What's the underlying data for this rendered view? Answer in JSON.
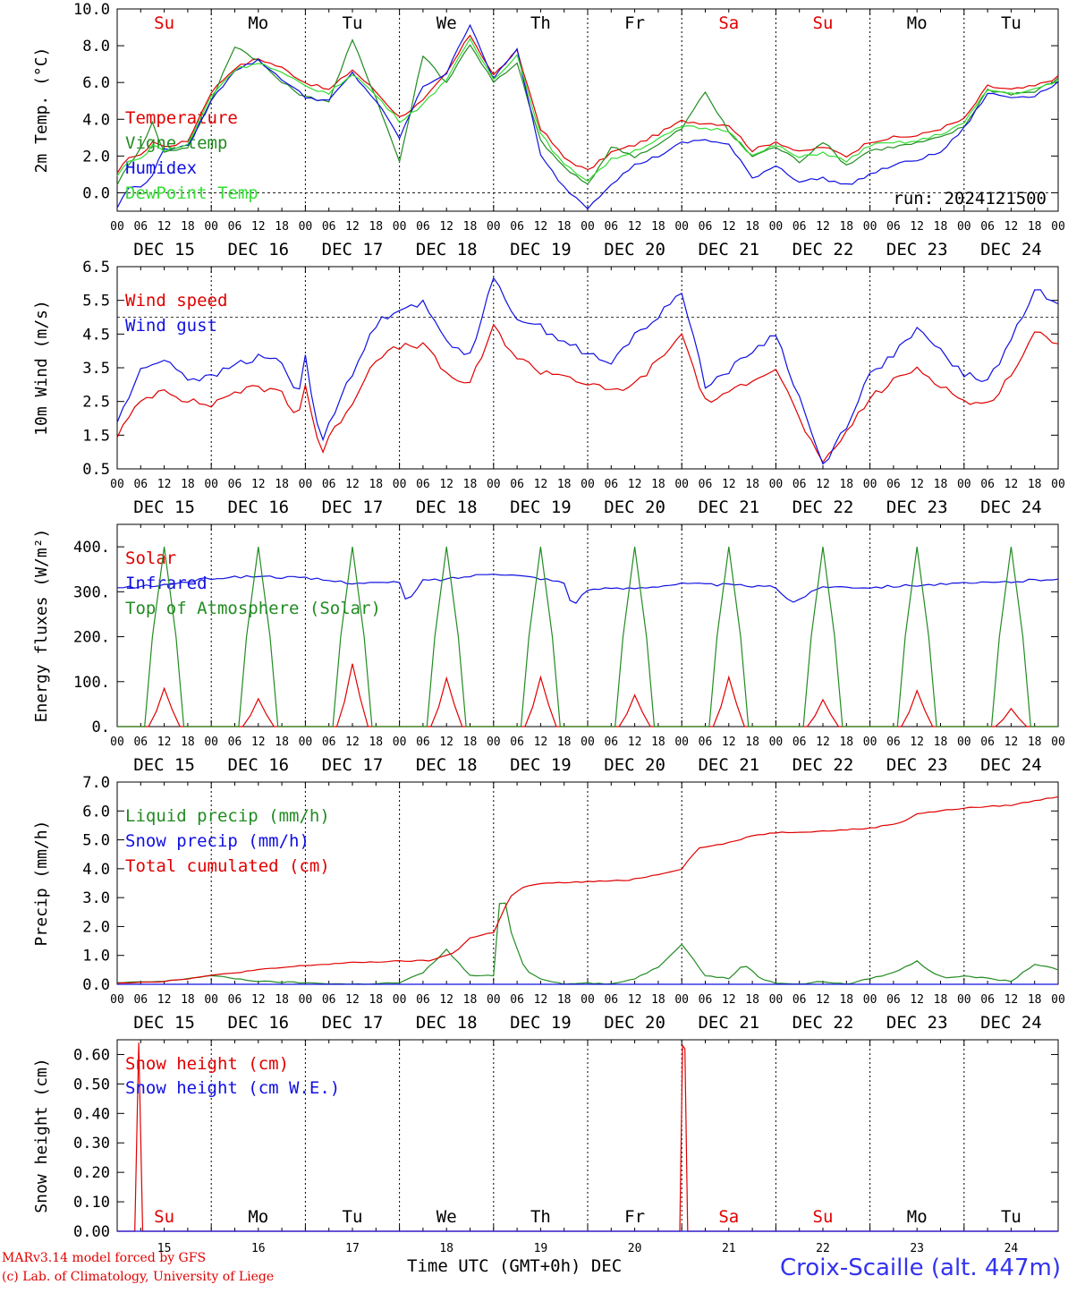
{
  "weekdays": [
    "Su",
    "Mo",
    "Tu",
    "We",
    "Th",
    "Fr",
    "Sa",
    "Su",
    "Mo",
    "Tu"
  ],
  "weekday_colors": [
    "#e00000",
    "#000000",
    "#000000",
    "#000000",
    "#000000",
    "#000000",
    "#e00000",
    "#e00000",
    "#000000",
    "#000000"
  ],
  "date_labels": [
    "DEC 15",
    "DEC 16",
    "DEC 17",
    "DEC 18",
    "DEC 19",
    "DEC 20",
    "DEC 21",
    "DEC 22",
    "DEC 23",
    "DEC 24"
  ],
  "day_numbers": [
    "15",
    "16",
    "17",
    "18",
    "19",
    "20",
    "21",
    "22",
    "23",
    "24"
  ],
  "hour_ticks": [
    "00",
    "06",
    "12",
    "18"
  ],
  "hour_ticks_end": "00",
  "footer": {
    "credit_line1": "MARv3.14 model forced by GFS",
    "credit_line2": "(c) Lab. of Climatology, University of Liege",
    "x_axis_title": "Time UTC (GMT+0h) DEC",
    "station": "Croix-Scaille (alt. 447m)"
  },
  "colors": {
    "red": "#e00000",
    "green": "#228b22",
    "blue": "#1010e0",
    "lightgreen": "#33dd33"
  },
  "chart_data": [
    {
      "type": "line",
      "ylabel": "2m Temp. (°C)",
      "ylim": [
        -1,
        10
      ],
      "yticks": [
        "0.0",
        "2.0",
        "4.0",
        "6.0",
        "8.0",
        "10.0"
      ],
      "ytick_values": [
        0,
        2,
        4,
        6,
        8,
        10
      ],
      "ref_line": 0,
      "annotation": "run: 2024121500",
      "x_unit": "hours since Dec 15 00 UTC",
      "series": [
        {
          "name": "Temperature",
          "color": "#e00000",
          "x": [
            0,
            3,
            6,
            9,
            12,
            18,
            24,
            30,
            36,
            42,
            48,
            54,
            60,
            66,
            72,
            78,
            84,
            90,
            96,
            102,
            108,
            114,
            120,
            126,
            132,
            138,
            144,
            150,
            156,
            162,
            168,
            174,
            180,
            186,
            192,
            198,
            204,
            210,
            216,
            222,
            228,
            234,
            240
          ],
          "values": [
            1.0,
            2.0,
            2.0,
            2.8,
            2.5,
            2.8,
            5.5,
            6.8,
            7.3,
            6.8,
            6.0,
            5.6,
            6.7,
            5.5,
            4.1,
            5.0,
            6.5,
            8.6,
            6.4,
            7.7,
            3.5,
            1.9,
            1.2,
            2.2,
            2.6,
            3.2,
            3.9,
            3.8,
            3.7,
            2.3,
            2.8,
            2.2,
            2.5,
            2.0,
            2.8,
            3.0,
            3.1,
            3.5,
            4.0,
            5.8,
            5.6,
            5.8,
            6.3
          ]
        },
        {
          "name": "Vigne temp",
          "color": "#228b22",
          "x": [
            0,
            3,
            6,
            9,
            12,
            18,
            24,
            30,
            36,
            42,
            48,
            54,
            60,
            66,
            72,
            78,
            84,
            90,
            96,
            102,
            108,
            114,
            120,
            126,
            132,
            138,
            144,
            150,
            156,
            162,
            168,
            174,
            180,
            186,
            192,
            198,
            204,
            210,
            216,
            222,
            228,
            234,
            240
          ],
          "values": [
            0.5,
            1.5,
            2.5,
            3.8,
            2.2,
            2.5,
            5.0,
            8.0,
            7.2,
            6.0,
            5.2,
            5.0,
            8.3,
            5.2,
            1.7,
            7.5,
            6.0,
            8.1,
            6.0,
            7.0,
            2.8,
            1.4,
            0.4,
            2.5,
            2.0,
            2.6,
            3.5,
            5.5,
            3.3,
            2.0,
            2.5,
            1.7,
            2.8,
            1.5,
            2.3,
            2.5,
            2.7,
            3.0,
            3.6,
            5.6,
            5.4,
            5.5,
            6.2
          ]
        },
        {
          "name": "Humidex",
          "color": "#1010e0",
          "x": [
            0,
            3,
            6,
            9,
            12,
            18,
            24,
            30,
            36,
            42,
            48,
            54,
            60,
            66,
            72,
            78,
            84,
            90,
            96,
            102,
            108,
            114,
            120,
            126,
            132,
            138,
            144,
            150,
            156,
            162,
            168,
            174,
            180,
            186,
            192,
            198,
            204,
            210,
            216,
            222,
            228,
            234,
            240
          ],
          "values": [
            -0.8,
            0.3,
            0.3,
            1.0,
            2.4,
            2.5,
            5.0,
            6.7,
            7.2,
            6.2,
            5.2,
            5.0,
            6.5,
            5.0,
            3.0,
            5.8,
            6.5,
            9.2,
            6.2,
            7.8,
            2.0,
            0.3,
            -0.8,
            0.5,
            1.5,
            2.0,
            2.7,
            2.9,
            2.6,
            0.8,
            1.5,
            0.6,
            0.8,
            0.4,
            1.0,
            1.5,
            1.8,
            2.2,
            3.5,
            5.4,
            5.2,
            5.3,
            6.0
          ]
        },
        {
          "name": "DewPoint Temp",
          "color": "#33dd33",
          "x": [
            0,
            3,
            6,
            9,
            12,
            18,
            24,
            30,
            36,
            42,
            48,
            54,
            60,
            66,
            72,
            78,
            84,
            90,
            96,
            102,
            108,
            114,
            120,
            126,
            132,
            138,
            144,
            150,
            156,
            162,
            168,
            174,
            180,
            186,
            192,
            198,
            204,
            210,
            216,
            222,
            228,
            234,
            240
          ],
          "values": [
            0.9,
            1.8,
            1.8,
            2.6,
            2.3,
            2.6,
            5.3,
            6.7,
            7.1,
            6.5,
            5.8,
            5.4,
            6.5,
            5.3,
            3.9,
            4.8,
            6.2,
            8.3,
            6.2,
            7.5,
            3.2,
            1.5,
            0.7,
            1.8,
            2.3,
            2.9,
            3.6,
            3.5,
            3.4,
            2.0,
            2.6,
            1.9,
            2.2,
            1.7,
            2.6,
            2.7,
            2.8,
            3.2,
            3.8,
            5.6,
            5.4,
            5.6,
            6.1
          ]
        }
      ]
    },
    {
      "type": "line",
      "ylabel": "10m Wind (m/s)",
      "ylim": [
        0.5,
        6.5
      ],
      "yticks": [
        "0.5",
        "1.5",
        "2.5",
        "3.5",
        "4.5",
        "5.5",
        "6.5"
      ],
      "ytick_values": [
        0.5,
        1.5,
        2.5,
        3.5,
        4.5,
        5.5,
        6.5
      ],
      "ref_line": 5,
      "x_unit": "hours since Dec 15 00 UTC",
      "series": [
        {
          "name": "Wind speed",
          "color": "#e00000",
          "x": [
            0,
            6,
            12,
            18,
            24,
            30,
            36,
            42,
            46,
            48,
            52,
            54,
            60,
            66,
            72,
            78,
            84,
            90,
            96,
            102,
            108,
            114,
            120,
            126,
            132,
            138,
            144,
            150,
            156,
            162,
            168,
            174,
            180,
            186,
            192,
            198,
            204,
            210,
            216,
            222,
            228,
            234,
            240
          ],
          "values": [
            1.5,
            2.5,
            2.9,
            2.5,
            2.4,
            2.8,
            2.9,
            2.8,
            2.0,
            3.0,
            0.9,
            1.4,
            2.5,
            3.8,
            4.1,
            4.2,
            3.3,
            3.0,
            4.7,
            3.8,
            3.4,
            3.3,
            3.0,
            2.8,
            3.0,
            3.7,
            4.5,
            2.5,
            2.7,
            3.2,
            3.5,
            2.0,
            0.6,
            1.6,
            2.6,
            3.1,
            3.5,
            3.0,
            2.5,
            2.4,
            3.3,
            4.5,
            4.3
          ]
        },
        {
          "name": "Wind gust",
          "color": "#1010e0",
          "x": [
            0,
            6,
            12,
            18,
            24,
            30,
            36,
            42,
            46,
            48,
            52,
            54,
            60,
            66,
            72,
            78,
            84,
            90,
            96,
            102,
            108,
            114,
            120,
            126,
            132,
            138,
            144,
            150,
            156,
            162,
            168,
            174,
            180,
            186,
            192,
            198,
            204,
            210,
            216,
            222,
            228,
            234,
            240
          ],
          "values": [
            1.9,
            3.4,
            3.8,
            3.2,
            3.2,
            3.6,
            3.8,
            3.7,
            2.6,
            3.8,
            1.2,
            1.9,
            3.3,
            4.8,
            5.3,
            5.4,
            4.3,
            3.9,
            6.1,
            5.0,
            4.7,
            4.3,
            3.9,
            3.6,
            4.5,
            5.0,
            5.8,
            3.0,
            3.4,
            4.0,
            4.5,
            2.6,
            0.6,
            1.8,
            3.3,
            3.9,
            4.6,
            4.0,
            3.3,
            3.1,
            4.3,
            5.8,
            5.5
          ]
        }
      ]
    },
    {
      "type": "line",
      "ylabel": "Energy fluxes (W/m²)",
      "ylim": [
        0,
        450
      ],
      "yticks": [
        "0.",
        "100.",
        "200.",
        "300.",
        "400."
      ],
      "ytick_values": [
        0,
        100,
        200,
        300,
        400
      ],
      "x_unit": "hours since Dec 15 00 UTC",
      "solar_peaks": [
        85,
        62,
        140,
        108,
        110,
        70,
        110,
        60,
        80,
        40
      ],
      "toa_peak": 400,
      "series": [
        {
          "name": "Solar",
          "color": "#e00000"
        },
        {
          "name": "Infrared",
          "color": "#1010e0",
          "x": [
            0,
            12,
            24,
            36,
            48,
            60,
            72,
            74,
            78,
            84,
            96,
            108,
            114,
            116,
            120,
            132,
            144,
            156,
            168,
            172,
            180,
            192,
            204,
            216,
            228,
            240
          ],
          "values": [
            308,
            315,
            330,
            335,
            330,
            320,
            320,
            275,
            325,
            328,
            342,
            330,
            320,
            268,
            305,
            308,
            318,
            315,
            310,
            275,
            312,
            310,
            315,
            318,
            322,
            330
          ]
        },
        {
          "name": "Top of Atmosphere (Solar)",
          "color": "#228b22"
        }
      ]
    },
    {
      "type": "line",
      "ylabel": "Precip (mm/h)",
      "ylim": [
        0,
        7
      ],
      "yticks": [
        "0.0",
        "1.0",
        "2.0",
        "3.0",
        "4.0",
        "5.0",
        "6.0",
        "7.0"
      ],
      "ytick_values": [
        0,
        1,
        2,
        3,
        4,
        5,
        6,
        7
      ],
      "x_unit": "hours since Dec 15 00 UTC",
      "series": [
        {
          "name": "Liquid precip (mm/h)",
          "color": "#228b22",
          "x": [
            0,
            12,
            24,
            30,
            36,
            48,
            60,
            72,
            78,
            84,
            90,
            96,
            98,
            100,
            104,
            108,
            114,
            120,
            126,
            132,
            138,
            144,
            150,
            156,
            160,
            164,
            168,
            174,
            180,
            186,
            192,
            198,
            204,
            208,
            212,
            216,
            222,
            228,
            234,
            240
          ],
          "values": [
            0.05,
            0.1,
            0.3,
            0.2,
            0.1,
            0.05,
            0.0,
            0.05,
            0.4,
            1.2,
            0.3,
            0.3,
            3.6,
            2.0,
            0.5,
            0.2,
            0.0,
            0.05,
            0.0,
            0.2,
            0.6,
            1.4,
            0.3,
            0.2,
            0.7,
            0.2,
            0.05,
            0.0,
            0.1,
            0.0,
            0.2,
            0.4,
            0.8,
            0.4,
            0.2,
            0.3,
            0.2,
            0.1,
            0.7,
            0.5
          ]
        },
        {
          "name": "Snow precip (mm/h)",
          "color": "#1010e0",
          "x": [
            0,
            240
          ],
          "values": [
            0.0,
            0.0
          ]
        },
        {
          "name": "Total cumulated (cm)",
          "color": "#e00000",
          "x": [
            0,
            12,
            24,
            36,
            48,
            60,
            72,
            80,
            86,
            90,
            96,
            100,
            104,
            110,
            120,
            130,
            138,
            144,
            148,
            156,
            162,
            168,
            180,
            192,
            200,
            204,
            216,
            228,
            236,
            240
          ],
          "values": [
            0.05,
            0.1,
            0.3,
            0.5,
            0.65,
            0.75,
            0.8,
            0.82,
            1.1,
            1.6,
            1.8,
            3.0,
            3.4,
            3.5,
            3.55,
            3.6,
            3.8,
            4.0,
            4.7,
            4.9,
            5.15,
            5.25,
            5.3,
            5.4,
            5.6,
            5.9,
            6.1,
            6.2,
            6.4,
            6.5
          ]
        }
      ]
    },
    {
      "type": "line",
      "ylabel": "Snow height (cm)",
      "ylim": [
        0,
        0.65
      ],
      "yticks": [
        "0.00",
        "0.10",
        "0.20",
        "0.30",
        "0.40",
        "0.50",
        "0.60"
      ],
      "ytick_values": [
        0,
        0.1,
        0.2,
        0.3,
        0.4,
        0.5,
        0.6
      ],
      "x_unit": "hours since Dec 15 00 UTC",
      "series": [
        {
          "name": "Snow height (cm)",
          "color": "#e00000",
          "x": [
            0,
            4.5,
            5.5,
            6.5,
            143.5,
            144.2,
            144.8,
            145.5,
            240
          ],
          "values": [
            0,
            0,
            0.64,
            0,
            0,
            0.63,
            0.62,
            0,
            0
          ]
        },
        {
          "name": "Snow height (cm W.E.)",
          "color": "#1010e0",
          "x": [
            0,
            240
          ],
          "values": [
            0,
            0
          ]
        }
      ]
    }
  ]
}
